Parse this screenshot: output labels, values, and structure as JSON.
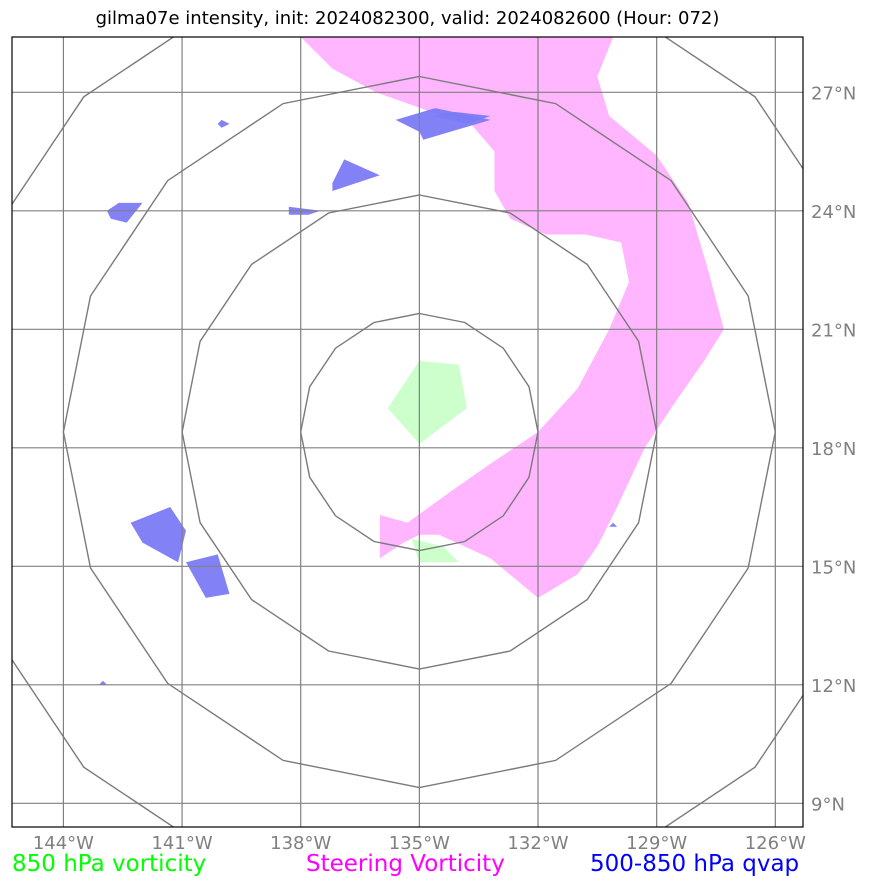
{
  "title": "gilma07e intensity, init: 2024082300, valid: 2024082600 (Hour: 072)",
  "map": {
    "lon_range": [
      -145.3,
      -125.3
    ],
    "lat_range": [
      8.4,
      28.4
    ],
    "lon_ticks": [
      -144,
      -141,
      -138,
      -135,
      -132,
      -129,
      -126
    ],
    "lat_ticks": [
      9,
      12,
      15,
      18,
      21,
      24,
      27
    ],
    "lon_tick_labels": [
      "144°W",
      "141°W",
      "138°W",
      "135°W",
      "132°W",
      "129°W",
      "126°W"
    ],
    "lat_tick_labels": [
      "9°N",
      "12°N",
      "15°N",
      "18°N",
      "21°N",
      "24°N",
      "27°N"
    ],
    "center": {
      "lon": -135,
      "lat": 18.4
    },
    "range_rings_deg": [
      3,
      6,
      9,
      12
    ]
  },
  "layers": {
    "vorticity_850": {
      "label": "850 hPa vorticity",
      "color": "#00ff00",
      "fill": "#ccffcc",
      "polygons": [
        [
          [
            -135.0,
            18.1
          ],
          [
            -135.8,
            19.0
          ],
          [
            -135.0,
            20.2
          ],
          [
            -134.0,
            20.1
          ],
          [
            -133.8,
            19.0
          ]
        ],
        [
          [
            -135.0,
            15.1
          ],
          [
            -135.2,
            15.7
          ],
          [
            -134.4,
            15.5
          ],
          [
            -134.0,
            15.1
          ]
        ]
      ]
    },
    "steering_vorticity": {
      "label": "Steering Vorticity",
      "color": "#ff00ff",
      "fill": "#ffb6ff",
      "polygons": [
        [
          [
            -138.0,
            28.4
          ],
          [
            -130.1,
            28.4
          ],
          [
            -130.5,
            27.4
          ],
          [
            -130.2,
            26.4
          ],
          [
            -129.0,
            25.4
          ],
          [
            -128.2,
            24.2
          ],
          [
            -127.7,
            22.5
          ],
          [
            -127.3,
            21.0
          ],
          [
            -127.8,
            20.2
          ],
          [
            -128.5,
            19.2
          ],
          [
            -129.3,
            18.0
          ],
          [
            -130.0,
            16.5
          ],
          [
            -130.5,
            15.5
          ],
          [
            -131.0,
            14.8
          ],
          [
            -132.0,
            14.2
          ],
          [
            -133.2,
            15.2
          ],
          [
            -134.5,
            15.8
          ],
          [
            -135.0,
            15.8
          ],
          [
            -135.4,
            15.6
          ],
          [
            -136.0,
            15.2
          ],
          [
            -136.0,
            16.3
          ],
          [
            -135.3,
            16.1
          ],
          [
            -134.2,
            16.9
          ],
          [
            -133.2,
            17.6
          ],
          [
            -132.0,
            18.4
          ],
          [
            -131.0,
            19.5
          ],
          [
            -130.2,
            21.0
          ],
          [
            -129.7,
            22.2
          ],
          [
            -129.9,
            23.2
          ],
          [
            -130.8,
            23.4
          ],
          [
            -131.8,
            23.4
          ],
          [
            -132.7,
            23.8
          ],
          [
            -133.1,
            24.5
          ],
          [
            -133.1,
            25.5
          ],
          [
            -133.7,
            26.2
          ],
          [
            -134.4,
            26.4
          ],
          [
            -136.1,
            27.0
          ],
          [
            -137.2,
            27.6
          ]
        ],
        [
          [
            -132.3,
            27.1
          ],
          [
            -131.9,
            27.2
          ],
          [
            -131.7,
            27.0
          ],
          [
            -132.1,
            26.9
          ]
        ]
      ]
    },
    "qvap_500_850": {
      "label": "500-850 hPa qvap",
      "color": "#0000ff",
      "fill": "#7b7bf5",
      "polygons": [
        [
          [
            -135.6,
            26.3
          ],
          [
            -134.6,
            26.6
          ],
          [
            -133.2,
            26.3
          ],
          [
            -134.9,
            25.8
          ],
          [
            -135.0,
            26.0
          ]
        ],
        [
          [
            -136.9,
            25.3
          ],
          [
            -136.0,
            24.9
          ],
          [
            -137.2,
            24.5
          ],
          [
            -137.2,
            24.7
          ]
        ],
        [
          [
            -142.0,
            24.2
          ],
          [
            -142.4,
            23.7
          ],
          [
            -142.8,
            23.8
          ],
          [
            -142.9,
            24.0
          ],
          [
            -142.6,
            24.2
          ]
        ],
        [
          [
            -138.3,
            24.1
          ],
          [
            -137.5,
            24.0
          ],
          [
            -137.8,
            23.9
          ],
          [
            -138.3,
            23.9
          ]
        ],
        [
          [
            -140.0,
            26.3
          ],
          [
            -139.8,
            26.2
          ],
          [
            -140.0,
            26.1
          ],
          [
            -140.1,
            26.2
          ]
        ],
        [
          [
            -141.3,
            16.5
          ],
          [
            -140.9,
            15.9
          ],
          [
            -141.1,
            15.1
          ],
          [
            -142.0,
            15.6
          ],
          [
            -142.3,
            16.1
          ]
        ],
        [
          [
            -140.1,
            15.3
          ],
          [
            -139.8,
            14.3
          ],
          [
            -140.4,
            14.2
          ],
          [
            -140.9,
            15.1
          ]
        ],
        [
          [
            -143.0,
            12.1
          ],
          [
            -142.9,
            12.0
          ],
          [
            -143.1,
            12.0
          ]
        ],
        [
          [
            -130.1,
            16.1
          ],
          [
            -130.0,
            16.0
          ],
          [
            -130.2,
            16.0
          ]
        ],
        [
          [
            -134.1,
            26.5
          ],
          [
            -133.2,
            26.4
          ],
          [
            -133.8,
            26.2
          ],
          [
            -134.7,
            26.4
          ]
        ]
      ]
    }
  }
}
